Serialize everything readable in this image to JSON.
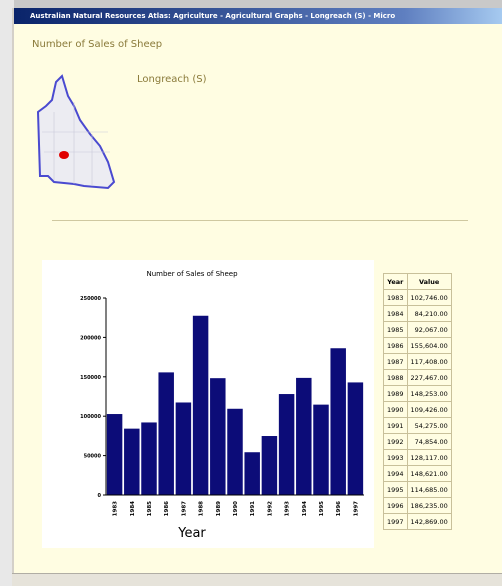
{
  "window": {
    "title": "Australian Natural Resources Atlas: Agriculture - Agricultural Graphs - Longreach (S) - Micro"
  },
  "page": {
    "heading": "Number of Sales of Sheep",
    "place": "Longreach (S)"
  },
  "chart_data": {
    "type": "bar",
    "title": "Number of Sales of Sheep",
    "x_label": "Year",
    "categories": [
      "1983",
      "1984",
      "1985",
      "1986",
      "1987",
      "1988",
      "1989",
      "1990",
      "1991",
      "1992",
      "1993",
      "1994",
      "1995",
      "1996",
      "1997"
    ],
    "values": [
      102746,
      84210,
      92067,
      155604,
      117408,
      227467,
      148253,
      109426,
      54275,
      74854,
      128117,
      148621,
      114685,
      186235,
      142869
    ],
    "color": "#0c0c78",
    "ylim": [
      0,
      250000
    ],
    "yticks": [
      0,
      50000,
      100000,
      150000,
      200000,
      250000
    ]
  },
  "table": {
    "header": [
      "Year",
      "Value"
    ],
    "rows": [
      [
        "1983",
        "102,746.00"
      ],
      [
        "1984",
        "84,210.00"
      ],
      [
        "1985",
        "92,067.00"
      ],
      [
        "1986",
        "155,604.00"
      ],
      [
        "1987",
        "117,408.00"
      ],
      [
        "1988",
        "227,467.00"
      ],
      [
        "1989",
        "148,253.00"
      ],
      [
        "1990",
        "109,426.00"
      ],
      [
        "1991",
        "54,275.00"
      ],
      [
        "1992",
        "74,854.00"
      ],
      [
        "1993",
        "128,117.00"
      ],
      [
        "1994",
        "148,621.00"
      ],
      [
        "1995",
        "114,685.00"
      ],
      [
        "1996",
        "186,235.00"
      ],
      [
        "1997",
        "142,869.00"
      ]
    ]
  }
}
